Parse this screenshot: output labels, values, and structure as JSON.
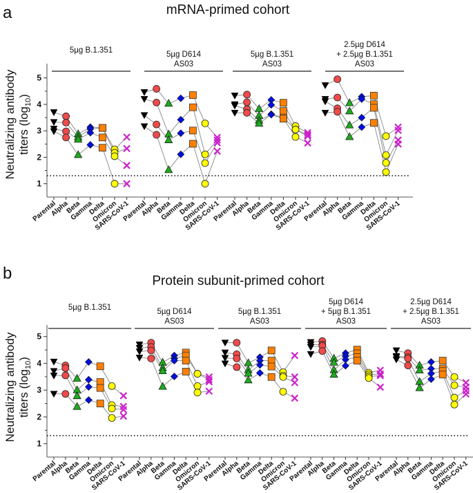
{
  "colors": {
    "Parental": "#000000",
    "Alpha": "#f04a4a",
    "Beta": "#1faa1f",
    "Gamma": "#0010e0",
    "Delta": "#ff8000",
    "Omicron": "#ffff00",
    "SARS-CoV-1": "#cc22cc",
    "connector": "#909090"
  },
  "markers": {
    "Parental": "triangle-down",
    "Alpha": "circle",
    "Beta": "triangle-up",
    "Gamma": "diamond",
    "Delta": "square",
    "Omicron": "circle",
    "SARS-CoV-1": "x"
  },
  "chart_data": [
    {
      "panel": "a",
      "type": "scatter",
      "title": "mRNA-primed cohort",
      "ylabel_lines": [
        "Neutralizing antibody",
        "titers (log",
        "10",
        ")"
      ],
      "ylim": [
        1,
        5.5
      ],
      "yticks": [
        1,
        2,
        3,
        4,
        5
      ],
      "threshold": 1.3,
      "categories": [
        "Parental",
        "Alpha",
        "Beta",
        "Gamma",
        "Delta",
        "Omicron",
        "SARS-CoV-1"
      ],
      "groups": [
        {
          "label": [
            "5µg B.1.351"
          ],
          "values": [
            [
              3.7,
              3.33,
              3.08,
              2.98
            ],
            [
              3.55,
              3.31,
              2.98,
              2.75
            ],
            [
              2.88,
              2.76,
              2.67,
              2.09
            ],
            [
              3.14,
              3.07,
              2.93,
              2.47
            ],
            [
              3.11,
              3.11,
              2.75,
              2.36
            ],
            [
              2.3,
              2.17,
              2.04,
              1.0
            ],
            [
              2.76,
              2.33,
              1.69,
              1.0
            ]
          ]
        },
        {
          "label": [
            "5µg D614",
            "AS03"
          ],
          "values": [
            [
              4.46,
              4.2,
              3.59,
              3.17
            ],
            [
              4.59,
              4.07,
              3.24,
              2.85
            ],
            [
              4.03,
              2.87,
              2.65,
              1.52
            ],
            [
              4.23,
              3.42,
              2.91,
              2.11
            ],
            [
              4.35,
              3.89,
              3.01,
              2.51
            ],
            [
              3.28,
              2.11,
              1.78,
              1.0
            ],
            [
              2.75,
              2.65,
              2.55,
              2.23
            ]
          ]
        },
        {
          "label": [
            "5µg B.1.351",
            "AS03"
          ],
          "values": [
            [
              4.33,
              4.0,
              3.95,
              3.68
            ],
            [
              4.37,
              4.08,
              3.82,
              3.68
            ],
            [
              3.83,
              3.57,
              3.39,
              3.28
            ],
            [
              4.17,
              3.98,
              3.63,
              3.61
            ],
            [
              4.06,
              3.75,
              3.5,
              3.46
            ],
            [
              3.18,
              3.05,
              3.05,
              2.77
            ],
            [
              2.93,
              2.85,
              2.8,
              2.54
            ]
          ]
        },
        {
          "label": [
            "2.5µg D614",
            "+ 2.5µg B.1.351",
            "AS03"
          ],
          "values": [
            [
              4.72,
              4.2,
              4.11,
              3.68
            ],
            [
              4.95,
              4.26,
              3.85,
              3.72
            ],
            [
              4.05,
              3.74,
              3.21,
              2.77
            ],
            [
              4.29,
              4.2,
              3.5,
              3.14
            ],
            [
              4.33,
              4.01,
              3.87,
              3.3
            ],
            [
              2.8,
              2.08,
              1.79,
              1.44
            ],
            [
              3.14,
              3.02,
              2.65,
              2.5
            ]
          ]
        }
      ]
    },
    {
      "panel": "b",
      "type": "scatter",
      "title": "Protein subunit-primed cohort",
      "ylabel_lines": [
        "Neutralizing antibody",
        "titers (log",
        "10",
        ")"
      ],
      "ylim": [
        1,
        5.5
      ],
      "yticks": [
        1,
        2,
        3,
        4,
        5
      ],
      "threshold": 1.3,
      "categories": [
        "Parental",
        "Alpha",
        "Beta",
        "Gamma",
        "Delta",
        "Omicron",
        "SARS-CoV-1"
      ],
      "groups": [
        {
          "label": [
            "5µg B.1.351"
          ],
          "values": [
            [
              4.06,
              3.71,
              3.54,
              2.86
            ],
            [
              3.92,
              3.82,
              3.55,
              2.86
            ],
            [
              3.43,
              3.0,
              2.78,
              2.38
            ],
            [
              4.05,
              3.39,
              3.12,
              2.63
            ],
            [
              3.89,
              3.3,
              3.08,
              2.5
            ],
            [
              3.15,
              2.44,
              2.31,
              1.96
            ],
            [
              2.79,
              2.39,
              2.27,
              2.03
            ]
          ]
        },
        {
          "label": [
            "5µg D614",
            "AS03"
          ],
          "values": [
            [
              4.7,
              4.57,
              4.44,
              4.21
            ],
            [
              4.77,
              4.61,
              4.48,
              4.18
            ],
            [
              4.03,
              3.82,
              3.71,
              3.13
            ],
            [
              4.29,
              4.18,
              4.1,
              3.51
            ],
            [
              4.4,
              4.29,
              4.1,
              3.69
            ],
            [
              3.61,
              3.61,
              3.15,
              2.91
            ],
            [
              3.49,
              3.39,
              3.31,
              2.96
            ]
          ]
        },
        {
          "label": [
            "5µg B.1.351",
            "AS03"
          ],
          "values": [
            [
              4.77,
              4.4,
              4.2,
              3.99
            ],
            [
              4.77,
              4.34,
              4.18,
              3.86
            ],
            [
              4.01,
              3.75,
              3.62,
              3.37
            ],
            [
              4.23,
              4.1,
              3.94,
              3.64
            ],
            [
              4.48,
              4.1,
              3.88,
              3.49
            ],
            [
              3.67,
              3.54,
              3.49,
              2.94
            ],
            [
              4.29,
              3.49,
              3.28,
              2.7
            ]
          ]
        },
        {
          "label": [
            "5µg D614",
            "+ 5µg B.1.351",
            "AS03"
          ],
          "values": [
            [
              4.79,
              4.7,
              4.61,
              4.34
            ],
            [
              4.83,
              4.7,
              4.65,
              4.46
            ],
            [
              4.18,
              4.03,
              3.75,
              3.58
            ],
            [
              4.38,
              4.27,
              4.14,
              3.91
            ],
            [
              4.51,
              4.37,
              4.23,
              4.1
            ],
            [
              3.65,
              3.58,
              3.51,
              3.45
            ],
            [
              3.74,
              3.6,
              3.54,
              3.11
            ]
          ]
        },
        {
          "label": [
            "2.5µg D614",
            "+ 2.5µg B.1.351",
            "AS03"
          ],
          "values": [
            [
              4.48,
              4.27,
              4.23,
              4.14
            ],
            [
              4.38,
              4.23,
              4.18,
              3.92
            ],
            [
              3.92,
              3.74,
              3.31,
              3.08
            ],
            [
              4.05,
              3.8,
              3.62,
              3.41
            ],
            [
              4.1,
              3.8,
              3.71,
              3.58
            ],
            [
              3.49,
              3.18,
              2.72,
              2.46
            ],
            [
              3.28,
              3.11,
              2.98,
              2.85
            ]
          ]
        }
      ]
    }
  ]
}
